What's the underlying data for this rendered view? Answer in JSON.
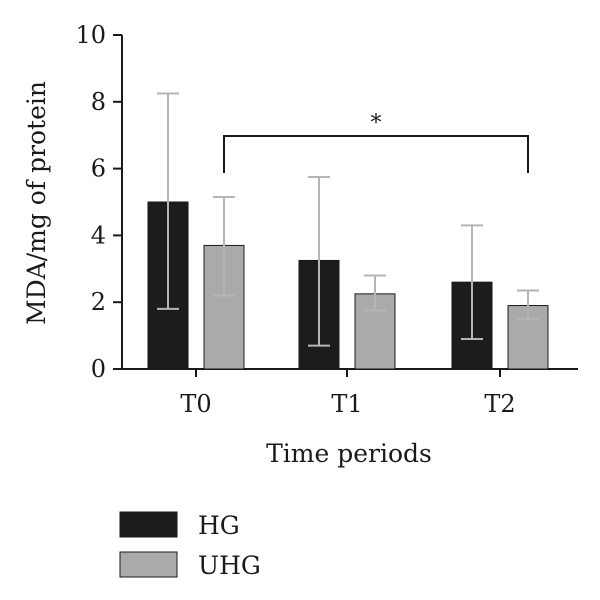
{
  "chart_data": {
    "type": "bar",
    "xlabel": "Time periods",
    "ylabel": "MDA/mg of protein",
    "ylim": [
      0,
      10
    ],
    "yticks": [
      "0",
      "2",
      "4",
      "6",
      "8",
      "10"
    ],
    "categories": [
      "T0",
      "T1",
      "T2"
    ],
    "series": [
      {
        "name": "HG",
        "color": "#1c1c1c",
        "values": [
          5.0,
          3.25,
          2.6
        ],
        "error_low": [
          1.8,
          0.7,
          0.9
        ],
        "error_high": [
          8.25,
          5.75,
          4.3
        ]
      },
      {
        "name": "UHG",
        "color": "#aaaaaa",
        "values": [
          3.7,
          2.25,
          1.9
        ],
        "error_low": [
          2.2,
          1.75,
          1.5
        ],
        "error_high": [
          5.15,
          2.8,
          2.35
        ]
      }
    ],
    "significance": {
      "from_category": "T0",
      "to_category": "T2",
      "series": "UHG",
      "label": "*"
    },
    "legend": {
      "placement": "bottom-left",
      "entries": [
        "HG",
        "UHG"
      ]
    },
    "grid": false
  }
}
